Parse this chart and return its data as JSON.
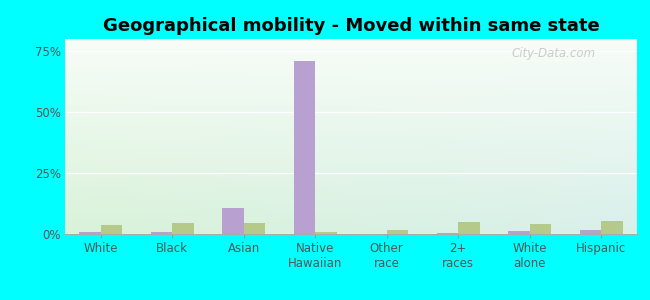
{
  "title": "Geographical mobility - Moved within same state",
  "categories": [
    "White",
    "Black",
    "Asian",
    "Native\nHawaiian",
    "Other\nrace",
    "2+\nraces",
    "White\nalone",
    "Hispanic"
  ],
  "vicksburg_values": [
    1.0,
    0.8,
    10.5,
    71.0,
    0.0,
    0.5,
    1.2,
    1.5
  ],
  "mississippi_values": [
    3.5,
    4.5,
    4.5,
    1.0,
    1.5,
    5.0,
    4.0,
    5.5
  ],
  "vicksburg_color": "#b8a0d0",
  "mississippi_color": "#b5c98a",
  "outer_background": "#00ffff",
  "ylim": [
    0,
    80
  ],
  "yticks": [
    0,
    25,
    50,
    75
  ],
  "ytick_labels": [
    "0%",
    "25%",
    "50%",
    "75%"
  ],
  "bar_width": 0.3,
  "title_fontsize": 13,
  "tick_fontsize": 8.5,
  "legend_fontsize": 9,
  "watermark": "City-Data.com",
  "grid_color": "#dddddd",
  "bg_color_left": "#d8eed8",
  "bg_color_right": "#d8eee8"
}
